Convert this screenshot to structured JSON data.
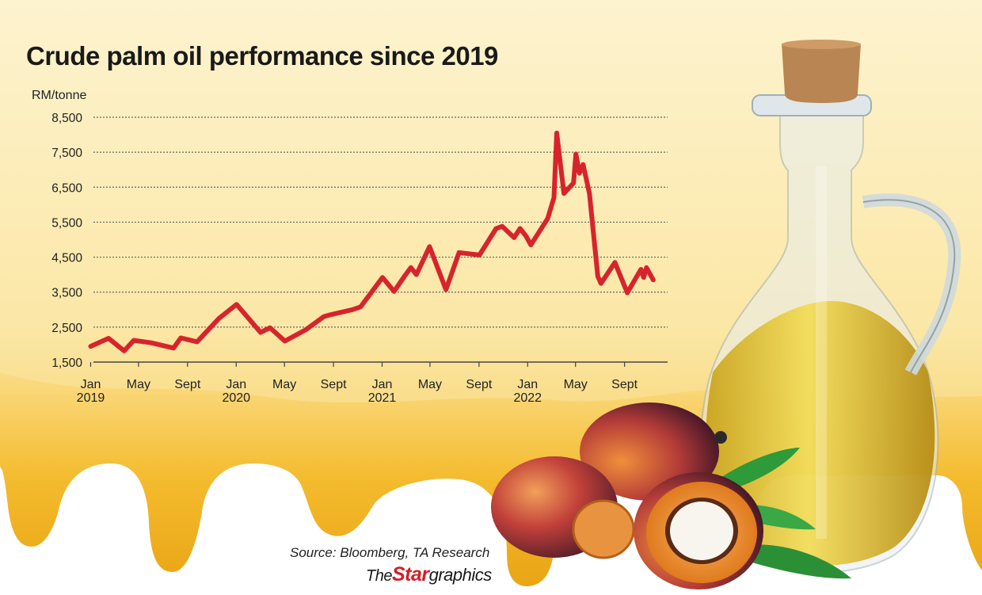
{
  "chart_data": {
    "type": "line",
    "title": "Crude palm oil performance since 2019",
    "ylabel": "RM/tonne",
    "ylim": [
      1500,
      8500
    ],
    "yticks": [
      "1,500",
      "2,500",
      "3,500",
      "4,500",
      "5,500",
      "6,500",
      "7,500",
      "8,500"
    ],
    "ytick_values": [
      1500,
      2500,
      3500,
      4500,
      5500,
      6500,
      7500,
      8500
    ],
    "xlim": [
      "2019-01",
      "2022-12"
    ],
    "xticks": [
      {
        "label": "Jan",
        "year": "2019",
        "x": "2019-01"
      },
      {
        "label": "May",
        "year": "",
        "x": "2019-05"
      },
      {
        "label": "Sept",
        "year": "",
        "x": "2019-09"
      },
      {
        "label": "Jan",
        "year": "2020",
        "x": "2020-01"
      },
      {
        "label": "May",
        "year": "",
        "x": "2020-05"
      },
      {
        "label": "Sept",
        "year": "",
        "x": "2020-09"
      },
      {
        "label": "Jan",
        "year": "2021",
        "x": "2021-01"
      },
      {
        "label": "May",
        "year": "",
        "x": "2021-05"
      },
      {
        "label": "Sept",
        "year": "",
        "x": "2021-09"
      },
      {
        "label": "Jan",
        "year": "2022",
        "x": "2022-01"
      },
      {
        "label": "May",
        "year": "",
        "x": "2022-05"
      },
      {
        "label": "Sept",
        "year": "",
        "x": "2022-09"
      }
    ],
    "grid": "horizontal dotted",
    "series": [
      {
        "color": "#d7242c",
        "points": [
          [
            "2019-01-01",
            1950
          ],
          [
            "2019-02-15",
            2180
          ],
          [
            "2019-03-26",
            1820
          ],
          [
            "2019-04-19",
            2120
          ],
          [
            "2019-06-02",
            2050
          ],
          [
            "2019-07-28",
            1900
          ],
          [
            "2019-08-15",
            2190
          ],
          [
            "2019-09-25",
            2080
          ],
          [
            "2019-11-19",
            2750
          ],
          [
            "2020-01-02",
            3150
          ],
          [
            "2020-03-02",
            2350
          ],
          [
            "2020-03-26",
            2480
          ],
          [
            "2020-05-02",
            2100
          ],
          [
            "2020-06-23",
            2420
          ],
          [
            "2020-08-08",
            2800
          ],
          [
            "2020-08-23",
            2850
          ],
          [
            "2020-10-19",
            3000
          ],
          [
            "2020-11-08",
            3080
          ],
          [
            "2021-01-02",
            3920
          ],
          [
            "2021-01-31",
            3520
          ],
          [
            "2021-02-27",
            3970
          ],
          [
            "2021-03-14",
            4200
          ],
          [
            "2021-03-28",
            4000
          ],
          [
            "2021-04-30",
            4800
          ],
          [
            "2021-06-10",
            3570
          ],
          [
            "2021-07-13",
            4630
          ],
          [
            "2021-09-02",
            4560
          ],
          [
            "2021-10-14",
            5320
          ],
          [
            "2021-10-29",
            5380
          ],
          [
            "2021-11-28",
            5060
          ],
          [
            "2021-12-13",
            5320
          ],
          [
            "2021-12-28",
            5100
          ],
          [
            "2022-01-09",
            4850
          ],
          [
            "2022-02-20",
            5600
          ],
          [
            "2022-03-08",
            6200
          ],
          [
            "2022-03-15",
            8050
          ],
          [
            "2022-04-02",
            6320
          ],
          [
            "2022-04-26",
            6620
          ],
          [
            "2022-05-02",
            7450
          ],
          [
            "2022-05-11",
            6900
          ],
          [
            "2022-05-20",
            7150
          ],
          [
            "2022-06-05",
            6320
          ],
          [
            "2022-06-26",
            3950
          ],
          [
            "2022-07-04",
            3750
          ],
          [
            "2022-08-08",
            4350
          ],
          [
            "2022-09-08",
            3480
          ],
          [
            "2022-10-12",
            4150
          ],
          [
            "2022-10-19",
            3920
          ],
          [
            "2022-10-26",
            4200
          ],
          [
            "2022-11-12",
            3850
          ]
        ]
      }
    ]
  },
  "footer": {
    "source": "Source: Bloomberg, TA Research",
    "brand_the": "The",
    "brand_star": "Star",
    "brand_graphics": "graphics"
  },
  "colors": {
    "background_top": "#fdf2c8",
    "background_mid": "#fbe5a0",
    "oil_drip": "#f6c233",
    "line": "#d7242c",
    "grid": "#666666"
  },
  "icons": {
    "bottle": "glass-oil-bottle-icon",
    "fruit": "palm-fruit-icon",
    "leaf": "palm-leaf-icon"
  }
}
